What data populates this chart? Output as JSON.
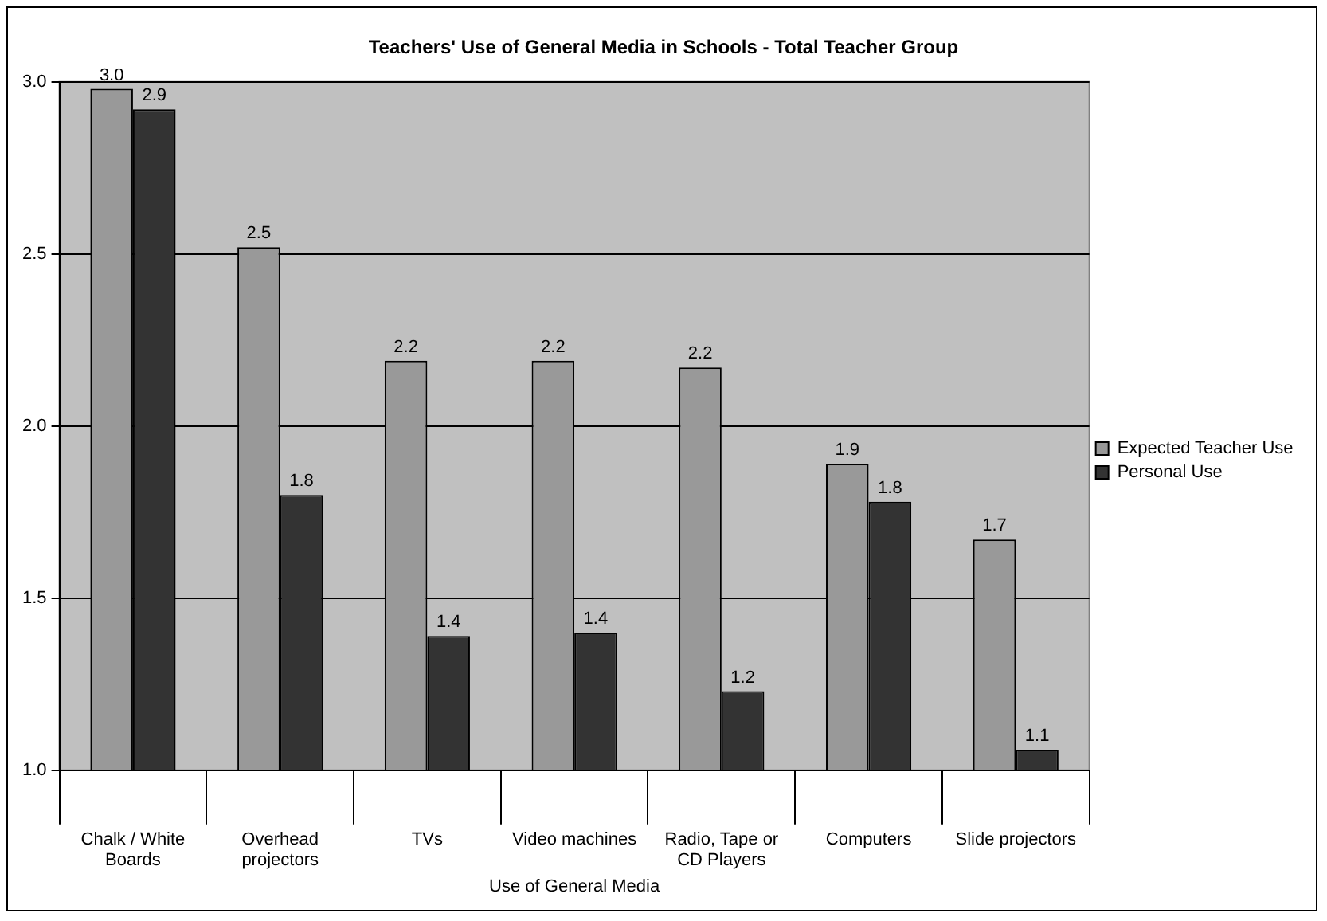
{
  "chart_data": {
    "type": "bar",
    "title": "Teachers' Use of General Media in Schools - Total Teacher Group",
    "xlabel": "Use of General Media",
    "categories": [
      "Chalk / White Boards",
      "Overhead projectors",
      "TVs",
      "Video machines",
      "Radio, Tape or CD Players",
      "Computers",
      "Slide projectors"
    ],
    "series": [
      {
        "name": "Expected Teacher Use",
        "color": "#999999",
        "values": [
          2.98,
          2.52,
          2.19,
          2.19,
          2.17,
          1.89,
          1.67
        ],
        "value_labels": [
          "3.0",
          "2.5",
          "2.2",
          "2.2",
          "2.2",
          "1.9",
          "1.7"
        ]
      },
      {
        "name": "Personal Use",
        "color": "#333333",
        "values": [
          2.92,
          1.8,
          1.39,
          1.4,
          1.23,
          1.78,
          1.06
        ],
        "value_labels": [
          "2.9",
          "1.8",
          "1.4",
          "1.4",
          "1.2",
          "1.8",
          "1.1"
        ]
      }
    ],
    "ylim": [
      1.0,
      3.0
    ],
    "yticks": [
      {
        "value": 1.0,
        "label": "1.0"
      },
      {
        "value": 1.5,
        "label": "1.5"
      },
      {
        "value": 2.0,
        "label": "2.0"
      },
      {
        "value": 2.5,
        "label": "2.5"
      },
      {
        "value": 3.0,
        "label": "3.0"
      }
    ],
    "grid": "y",
    "legend": "right"
  }
}
